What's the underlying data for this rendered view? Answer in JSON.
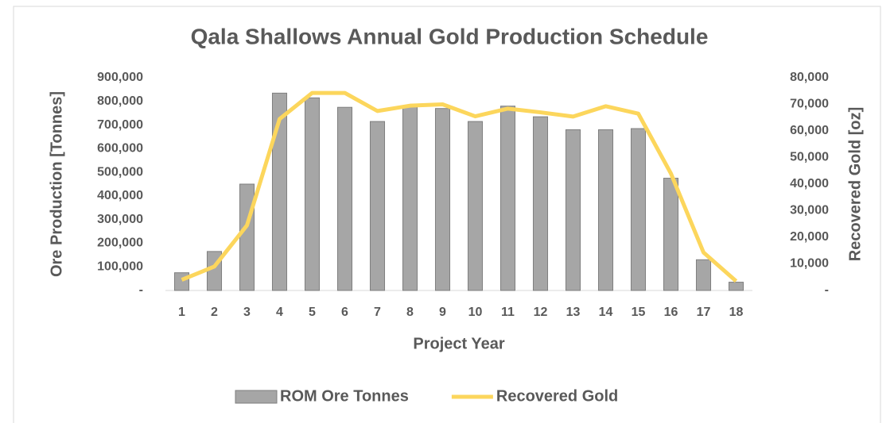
{
  "chart_data": {
    "type": "bar",
    "title": "Qala Shallows Annual Gold Production Schedule",
    "x_label": "Project Year",
    "y_label": "Ore Production  [Tonnes]",
    "y2_label": "Recovered Gold [oz]",
    "categories": [
      "1",
      "2",
      "3",
      "4",
      "5",
      "6",
      "7",
      "8",
      "9",
      "10",
      "11",
      "12",
      "13",
      "14",
      "15",
      "16",
      "17",
      "18"
    ],
    "series": [
      {
        "name": "ROM Ore Tonnes",
        "type": "bar",
        "color": "#a6a6a6",
        "axis": "y",
        "values": [
          75000,
          165000,
          450000,
          835000,
          815000,
          775000,
          715000,
          780000,
          770000,
          715000,
          780000,
          735000,
          680000,
          680000,
          685000,
          475000,
          130000,
          35000
        ]
      },
      {
        "name": "Recovered Gold",
        "type": "line",
        "color": "#fcd65c",
        "axis": "y2",
        "values": [
          4000,
          9000,
          24500,
          64500,
          74300,
          74300,
          67500,
          69500,
          70000,
          65500,
          68400,
          67000,
          65400,
          69300,
          66500,
          44000,
          14300,
          3500
        ]
      }
    ],
    "ylim": [
      0,
      900000
    ],
    "yticks": [
      {
        "value": 0,
        "label": "-"
      },
      {
        "value": 100000,
        "label": "100,000"
      },
      {
        "value": 200000,
        "label": "200,000"
      },
      {
        "value": 300000,
        "label": "300,000"
      },
      {
        "value": 400000,
        "label": "400,000"
      },
      {
        "value": 500000,
        "label": "500,000"
      },
      {
        "value": 600000,
        "label": "600,000"
      },
      {
        "value": 700000,
        "label": "700,000"
      },
      {
        "value": 800000,
        "label": "800,000"
      },
      {
        "value": 900000,
        "label": "900,000"
      }
    ],
    "y2lim": [
      0,
      80000
    ],
    "y2ticks": [
      {
        "value": 0,
        "label": "-"
      },
      {
        "value": 10000,
        "label": "10,000"
      },
      {
        "value": 20000,
        "label": "20,000"
      },
      {
        "value": 30000,
        "label": "30,000"
      },
      {
        "value": 40000,
        "label": "40,000"
      },
      {
        "value": 50000,
        "label": "50,000"
      },
      {
        "value": 60000,
        "label": "60,000"
      },
      {
        "value": 70000,
        "label": "70,000"
      },
      {
        "value": 80000,
        "label": "80,000"
      }
    ],
    "grid": false,
    "legend": "bottom"
  }
}
